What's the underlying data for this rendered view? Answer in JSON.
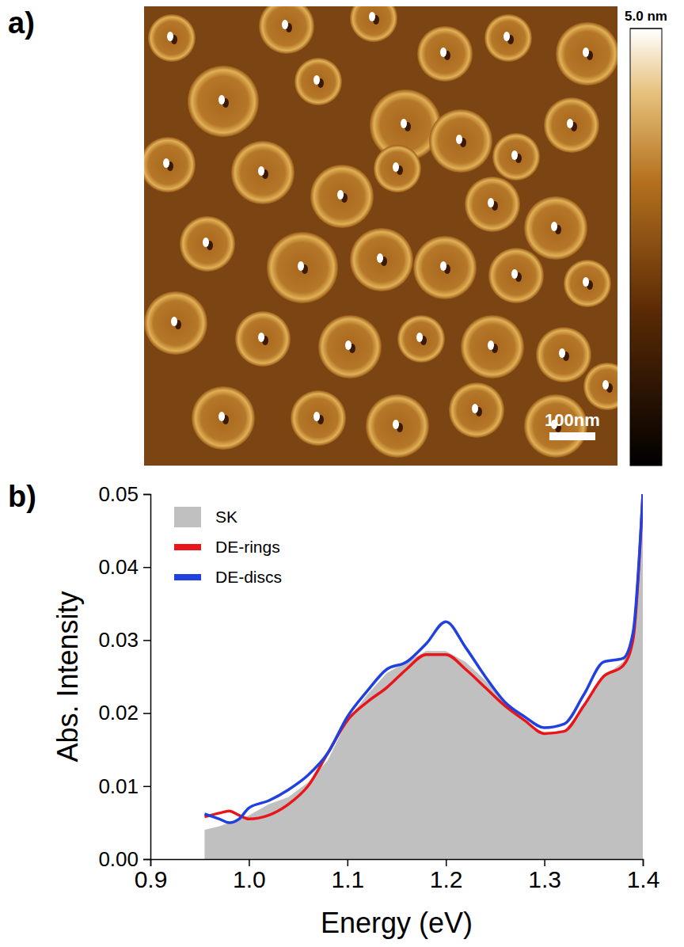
{
  "chart_data": [
    {
      "type": "image",
      "panel_label": "a)",
      "xlim": [
        0,
        1030
      ],
      "scale_bar": {
        "value": 100,
        "label": "100nm"
      },
      "colorbar": {
        "lim": [
          0,
          5.0
        ],
        "ticks": [
          {
            "value": 5.0,
            "label": "5.0 nm"
          }
        ]
      }
    },
    {
      "type": "line",
      "panel_label": "b)",
      "x_label": "Energy (eV)",
      "y_label": "Abs. Intensity",
      "x": [
        0.955,
        0.97,
        0.98,
        0.99,
        1.0,
        1.02,
        1.04,
        1.06,
        1.08,
        1.1,
        1.12,
        1.14,
        1.16,
        1.18,
        1.2,
        1.22,
        1.24,
        1.26,
        1.28,
        1.3,
        1.32,
        1.34,
        1.36,
        1.38,
        1.39,
        1.4
      ],
      "series": [
        {
          "name": "SK",
          "type": "area",
          "color": "#c0c0c0",
          "values": [
            0.004,
            0.0045,
            0.005,
            0.0055,
            0.006,
            0.0075,
            0.0085,
            0.0105,
            0.0135,
            0.019,
            0.0225,
            0.0255,
            0.027,
            0.0285,
            0.0285,
            0.027,
            0.0245,
            0.0215,
            0.019,
            0.017,
            0.0175,
            0.021,
            0.025,
            0.027,
            0.031,
            0.05
          ]
        },
        {
          "name": "DE-rings",
          "type": "line",
          "color": "#e8161b",
          "values": [
            0.0058,
            0.0063,
            0.0066,
            0.006,
            0.0055,
            0.006,
            0.0075,
            0.01,
            0.0145,
            0.019,
            0.0215,
            0.0235,
            0.026,
            0.028,
            0.028,
            0.026,
            0.0235,
            0.021,
            0.019,
            0.0172,
            0.0175,
            0.021,
            0.025,
            0.0265,
            0.03,
            0.05
          ]
        },
        {
          "name": "DE-discs",
          "type": "line",
          "color": "#2040e0",
          "values": [
            0.0062,
            0.0055,
            0.005,
            0.0055,
            0.007,
            0.008,
            0.0095,
            0.0115,
            0.0145,
            0.0195,
            0.023,
            0.026,
            0.027,
            0.0295,
            0.0325,
            0.029,
            0.025,
            0.0215,
            0.0195,
            0.018,
            0.0185,
            0.0225,
            0.027,
            0.0275,
            0.031,
            0.05
          ]
        }
      ],
      "xlim": [
        0.9,
        1.4
      ],
      "xticks": [
        0.9,
        {
          "value": 1.0,
          "label": "1.0"
        },
        1.1,
        1.2,
        1.3,
        1.4
      ],
      "ylim": [
        0,
        0.05
      ],
      "yticks": [
        {
          "value": 0,
          "label": "0.00"
        },
        {
          "value": 0.01,
          "label": "0.01"
        },
        {
          "value": 0.02,
          "label": "0.02"
        },
        {
          "value": 0.03,
          "label": "0.03"
        },
        {
          "value": 0.04,
          "label": "0.04"
        },
        {
          "value": 0.05,
          "label": "0.05"
        }
      ],
      "legend": "upper left"
    }
  ]
}
